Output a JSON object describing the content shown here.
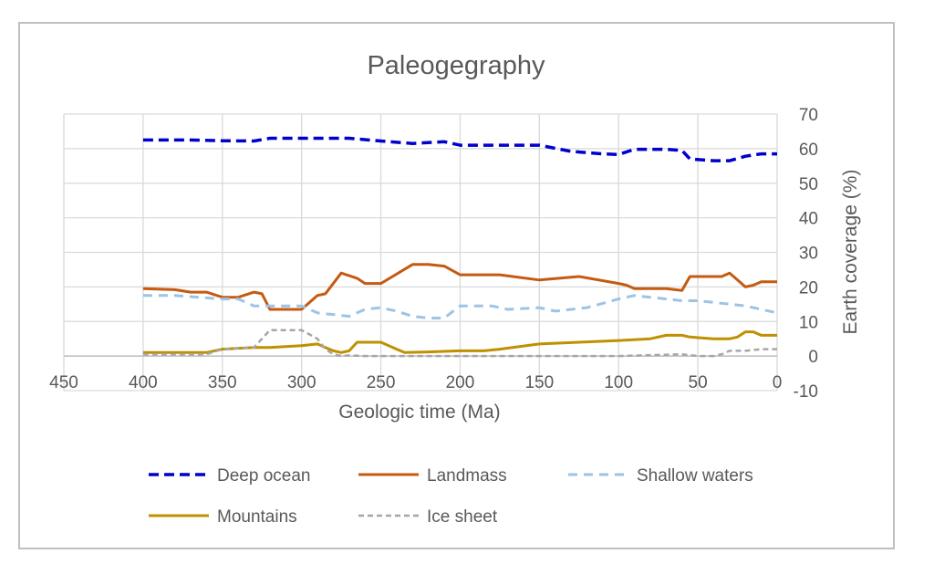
{
  "chart_data": {
    "type": "line",
    "title": "Paleogegraphy",
    "xlabel": "Geologic time (Ma)",
    "ylabel": "Earth coverage (%)",
    "xlim": [
      450,
      0
    ],
    "ylim": [
      -10,
      70
    ],
    "x_reversed": true,
    "y_axis_side": "right",
    "x_ticks": [
      "450",
      "400",
      "350",
      "300",
      "250",
      "200",
      "150",
      "100",
      "50",
      "0"
    ],
    "y_ticks": [
      "70",
      "60",
      "50",
      "40",
      "30",
      "20",
      "10",
      "0",
      "-10"
    ],
    "grid": true,
    "legend_position": "bottom",
    "series": [
      {
        "name": "Deep ocean",
        "color": "#0000cc",
        "dash": "long-dash",
        "x": [
          400,
          370,
          350,
          330,
          320,
          300,
          270,
          250,
          230,
          210,
          200,
          180,
          160,
          150,
          130,
          110,
          100,
          90,
          70,
          60,
          55,
          40,
          30,
          20,
          10,
          0
        ],
        "y": [
          62.5,
          62.5,
          62.3,
          62.2,
          63,
          63,
          63,
          62.2,
          61.5,
          62,
          61,
          61,
          61,
          61,
          59.2,
          58.5,
          58.3,
          59.8,
          59.8,
          59.5,
          57,
          56.5,
          56.5,
          57.8,
          58.5,
          58.5
        ]
      },
      {
        "name": "Landmass",
        "color": "#c55a11",
        "dash": "solid",
        "x": [
          400,
          380,
          370,
          360,
          350,
          340,
          330,
          325,
          320,
          300,
          290,
          285,
          275,
          265,
          260,
          250,
          230,
          220,
          210,
          200,
          175,
          150,
          125,
          100,
          95,
          90,
          80,
          70,
          60,
          55,
          35,
          30,
          25,
          20,
          15,
          10,
          0
        ],
        "y": [
          19.5,
          19.2,
          18.5,
          18.5,
          17,
          17,
          18.5,
          18,
          13.5,
          13.5,
          17.5,
          18,
          24,
          22.5,
          21,
          21,
          26.5,
          26.5,
          26,
          23.5,
          23.5,
          22,
          23,
          21,
          20.5,
          19.5,
          19.5,
          19.5,
          19,
          23,
          23,
          24,
          22,
          20,
          20.5,
          21.5,
          21.5
        ]
      },
      {
        "name": "Shallow waters",
        "color": "#9dc3e6",
        "dash": "dash",
        "x": [
          400,
          380,
          350,
          340,
          330,
          310,
          300,
          290,
          270,
          260,
          250,
          240,
          230,
          220,
          210,
          200,
          180,
          170,
          150,
          140,
          120,
          100,
          90,
          80,
          70,
          60,
          50,
          40,
          30,
          20,
          10,
          0
        ],
        "y": [
          17.5,
          17.5,
          16.5,
          16.5,
          14.5,
          14.5,
          14.5,
          12.5,
          11.5,
          13.5,
          14,
          13,
          11.5,
          11,
          11,
          14.5,
          14.5,
          13.5,
          14,
          13,
          14,
          16.5,
          17.5,
          17,
          16.5,
          16,
          16,
          15.5,
          15,
          14.5,
          13.5,
          12.5
        ]
      },
      {
        "name": "Mountains",
        "color": "#bf9000",
        "dash": "solid",
        "x": [
          400,
          380,
          370,
          360,
          350,
          330,
          320,
          300,
          290,
          285,
          280,
          275,
          270,
          265,
          260,
          250,
          240,
          235,
          220,
          200,
          185,
          175,
          150,
          125,
          100,
          80,
          70,
          65,
          60,
          55,
          40,
          30,
          25,
          20,
          15,
          10,
          0
        ],
        "y": [
          1,
          1,
          1,
          1,
          2,
          2.5,
          2.5,
          3,
          3.5,
          2.5,
          1.5,
          1,
          1.5,
          4,
          4,
          4,
          2,
          1,
          1.2,
          1.5,
          1.5,
          2,
          3.5,
          4,
          4.5,
          5,
          6,
          6,
          6,
          5.5,
          5,
          5,
          5.5,
          7,
          7,
          6,
          6
        ]
      },
      {
        "name": "Ice sheet",
        "color": "#a6a6a6",
        "dash": "short-dash",
        "x": [
          400,
          360,
          350,
          330,
          320,
          310,
          300,
          290,
          285,
          280,
          275,
          270,
          260,
          200,
          100,
          60,
          50,
          40,
          35,
          30,
          20,
          10,
          0
        ],
        "y": [
          0.5,
          0.5,
          2,
          2.5,
          7.5,
          7.5,
          7.5,
          5,
          2,
          0.5,
          0,
          0.2,
          0,
          0,
          0,
          0.5,
          0,
          0,
          0.5,
          1.5,
          1.5,
          2,
          2
        ]
      }
    ]
  }
}
